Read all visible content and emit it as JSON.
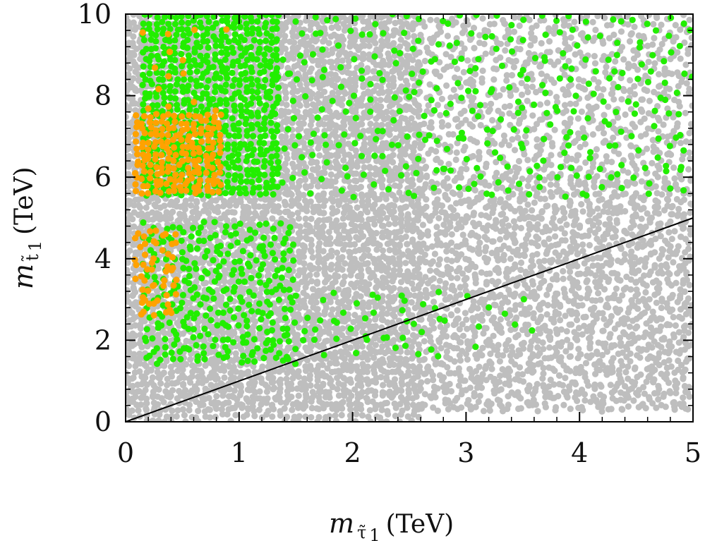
{
  "chart_data": {
    "type": "scatter",
    "title": "",
    "xlabel": {
      "symbol": "m",
      "subscript": "τ̃",
      "subscript_index": "1",
      "unit": "(TeV)"
    },
    "ylabel": {
      "symbol": "m",
      "subscript": "t̃",
      "subscript_index": "1",
      "unit": "(TeV)"
    },
    "xlim": [
      0,
      5
    ],
    "ylim": [
      0,
      10
    ],
    "x_ticks": [
      "0",
      "1",
      "2",
      "3",
      "4",
      "5"
    ],
    "y_ticks": [
      "0",
      "2",
      "4",
      "6",
      "8",
      "10"
    ],
    "grid": false,
    "legend": "none",
    "colors": {
      "all_points": "#bebebe",
      "green_points": "#22ee00",
      "orange_points": "#ffa200",
      "line": "#000000"
    },
    "series": [
      {
        "name": "all points",
        "color_key": "all_points",
        "regions": [
          {
            "x": [
              0.0,
              5.0
            ],
            "y": [
              0.3,
              10.0
            ],
            "density": "dense"
          },
          {
            "x": [
              0.0,
              2.6
            ],
            "y": [
              0.0,
              10.0
            ],
            "density": "solid"
          },
          {
            "x": [
              2.6,
              5.0
            ],
            "y": [
              0.25,
              6.0
            ],
            "density": "dense"
          },
          {
            "x": [
              2.6,
              5.0
            ],
            "y": [
              6.0,
              10.0
            ],
            "density": "sparse"
          }
        ]
      },
      {
        "name": "green points",
        "color_key": "green_points",
        "regions": [
          {
            "x": [
              0.15,
              1.35
            ],
            "y": [
              5.5,
              10.0
            ],
            "density": "solid"
          },
          {
            "x": [
              1.3,
              5.0
            ],
            "y": [
              5.5,
              10.0
            ],
            "density": "sparse"
          },
          {
            "x": [
              0.15,
              1.5
            ],
            "y": [
              1.4,
              4.9
            ],
            "density": "dense"
          },
          {
            "x": [
              1.5,
              2.8
            ],
            "y": [
              1.6,
              3.2
            ],
            "density": "sparse"
          },
          {
            "x": [
              2.8,
              3.6
            ],
            "y": [
              1.8,
              3.1
            ],
            "density": "very-sparse"
          }
        ]
      },
      {
        "name": "orange points",
        "color_key": "orange_points",
        "regions": [
          {
            "x": [
              0.08,
              0.85
            ],
            "y": [
              5.6,
              7.55
            ],
            "density": "solid"
          },
          {
            "x": [
              0.08,
              0.9
            ],
            "y": [
              7.6,
              9.8
            ],
            "density": "very-sparse"
          },
          {
            "x": [
              0.08,
              0.45
            ],
            "y": [
              2.6,
              4.8
            ],
            "density": "dense"
          }
        ]
      }
    ],
    "lines": [
      {
        "name": "diagonal m_t1 = m_tau1",
        "x": [
          0,
          5
        ],
        "y": [
          0,
          5
        ],
        "color_key": "line"
      }
    ]
  }
}
